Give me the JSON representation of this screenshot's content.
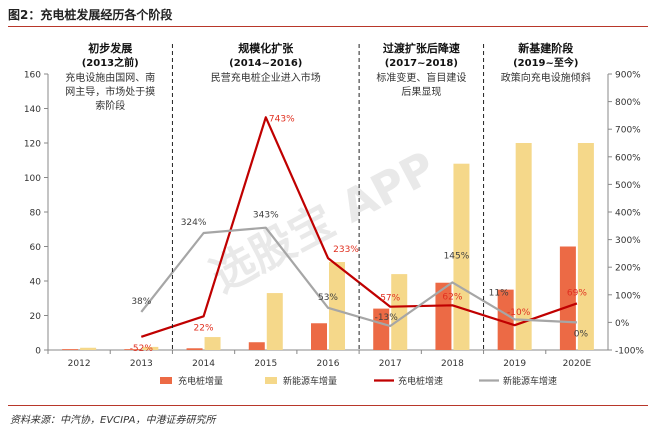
{
  "figure_title": "图2：充电桩发展经历各个阶段",
  "source": "资料来源：中汽协，EVCIPA，中港证券研究所",
  "watermark": "选股宝 APP",
  "stages": [
    {
      "title": "初步发展",
      "period": "(2013之前)",
      "desc": [
        "充电设施由国网、南",
        "网主导，市场处于摸",
        "索阶段"
      ]
    },
    {
      "title": "规模化扩张",
      "period": "(2014~2016)",
      "desc": [
        "民营充电桩企业进入市场"
      ]
    },
    {
      "title": "过渡扩张后降速",
      "period": "(2017~2018)",
      "desc": [
        "标准变更、盲目建设",
        "后果显现"
      ]
    },
    {
      "title": "新基建阶段",
      "period": "(2019~至今)",
      "desc": [
        "政策向充电设施倾斜"
      ]
    }
  ],
  "colors": {
    "charger_bar": "#ec6a45",
    "nev_bar": "#f5d88a",
    "charger_line": "#c00000",
    "nev_line": "#a6a6a6",
    "label_red": "#e03020",
    "label_gray": "#404040"
  },
  "chart_data": {
    "type": "bar",
    "categories": [
      "2012",
      "2013",
      "2014",
      "2015",
      "2016",
      "2017",
      "2018",
      "2019",
      "2020E"
    ],
    "y_left": {
      "min": 0,
      "max": 160,
      "ticks": [
        "0",
        "20",
        "40",
        "60",
        "80",
        "100",
        "120",
        "140",
        "160"
      ]
    },
    "y_right": {
      "min": -100,
      "max": 900,
      "ticks": [
        "-100%",
        "0%",
        "100%",
        "200%",
        "300%",
        "400%",
        "500%",
        "600%",
        "700%",
        "800%",
        "900%"
      ]
    },
    "series": [
      {
        "name": "充电桩增量",
        "kind": "bar",
        "axis": "left",
        "values": [
          0.5,
          0.5,
          1.0,
          4.5,
          15.5,
          24.0,
          39.0,
          35.0,
          60.0
        ]
      },
      {
        "name": "新能源车增量",
        "kind": "bar",
        "axis": "left",
        "values": [
          1.3,
          1.8,
          7.5,
          33.0,
          51.0,
          44.0,
          108.0,
          120.0,
          120.0
        ]
      },
      {
        "name": "充电桩增速",
        "kind": "line",
        "axis": "right",
        "values": [
          null,
          -52,
          22,
          743,
          233,
          57,
          62,
          -10,
          69
        ],
        "labels": [
          "",
          "-52%",
          "22%",
          "743%",
          "233%",
          "57%",
          "62%",
          "-10%",
          "69%"
        ]
      },
      {
        "name": "新能源车增速",
        "kind": "line",
        "axis": "right",
        "values": [
          null,
          38,
          324,
          343,
          53,
          -13,
          145,
          11,
          0
        ],
        "labels": [
          "",
          "38%",
          "324%",
          "343%",
          "53%",
          "-13%",
          "145%",
          "11%",
          "0%"
        ]
      }
    ],
    "stage_dividers_after": [
      "2013",
      "2016",
      "2018"
    ],
    "legend_position": "bottom"
  }
}
